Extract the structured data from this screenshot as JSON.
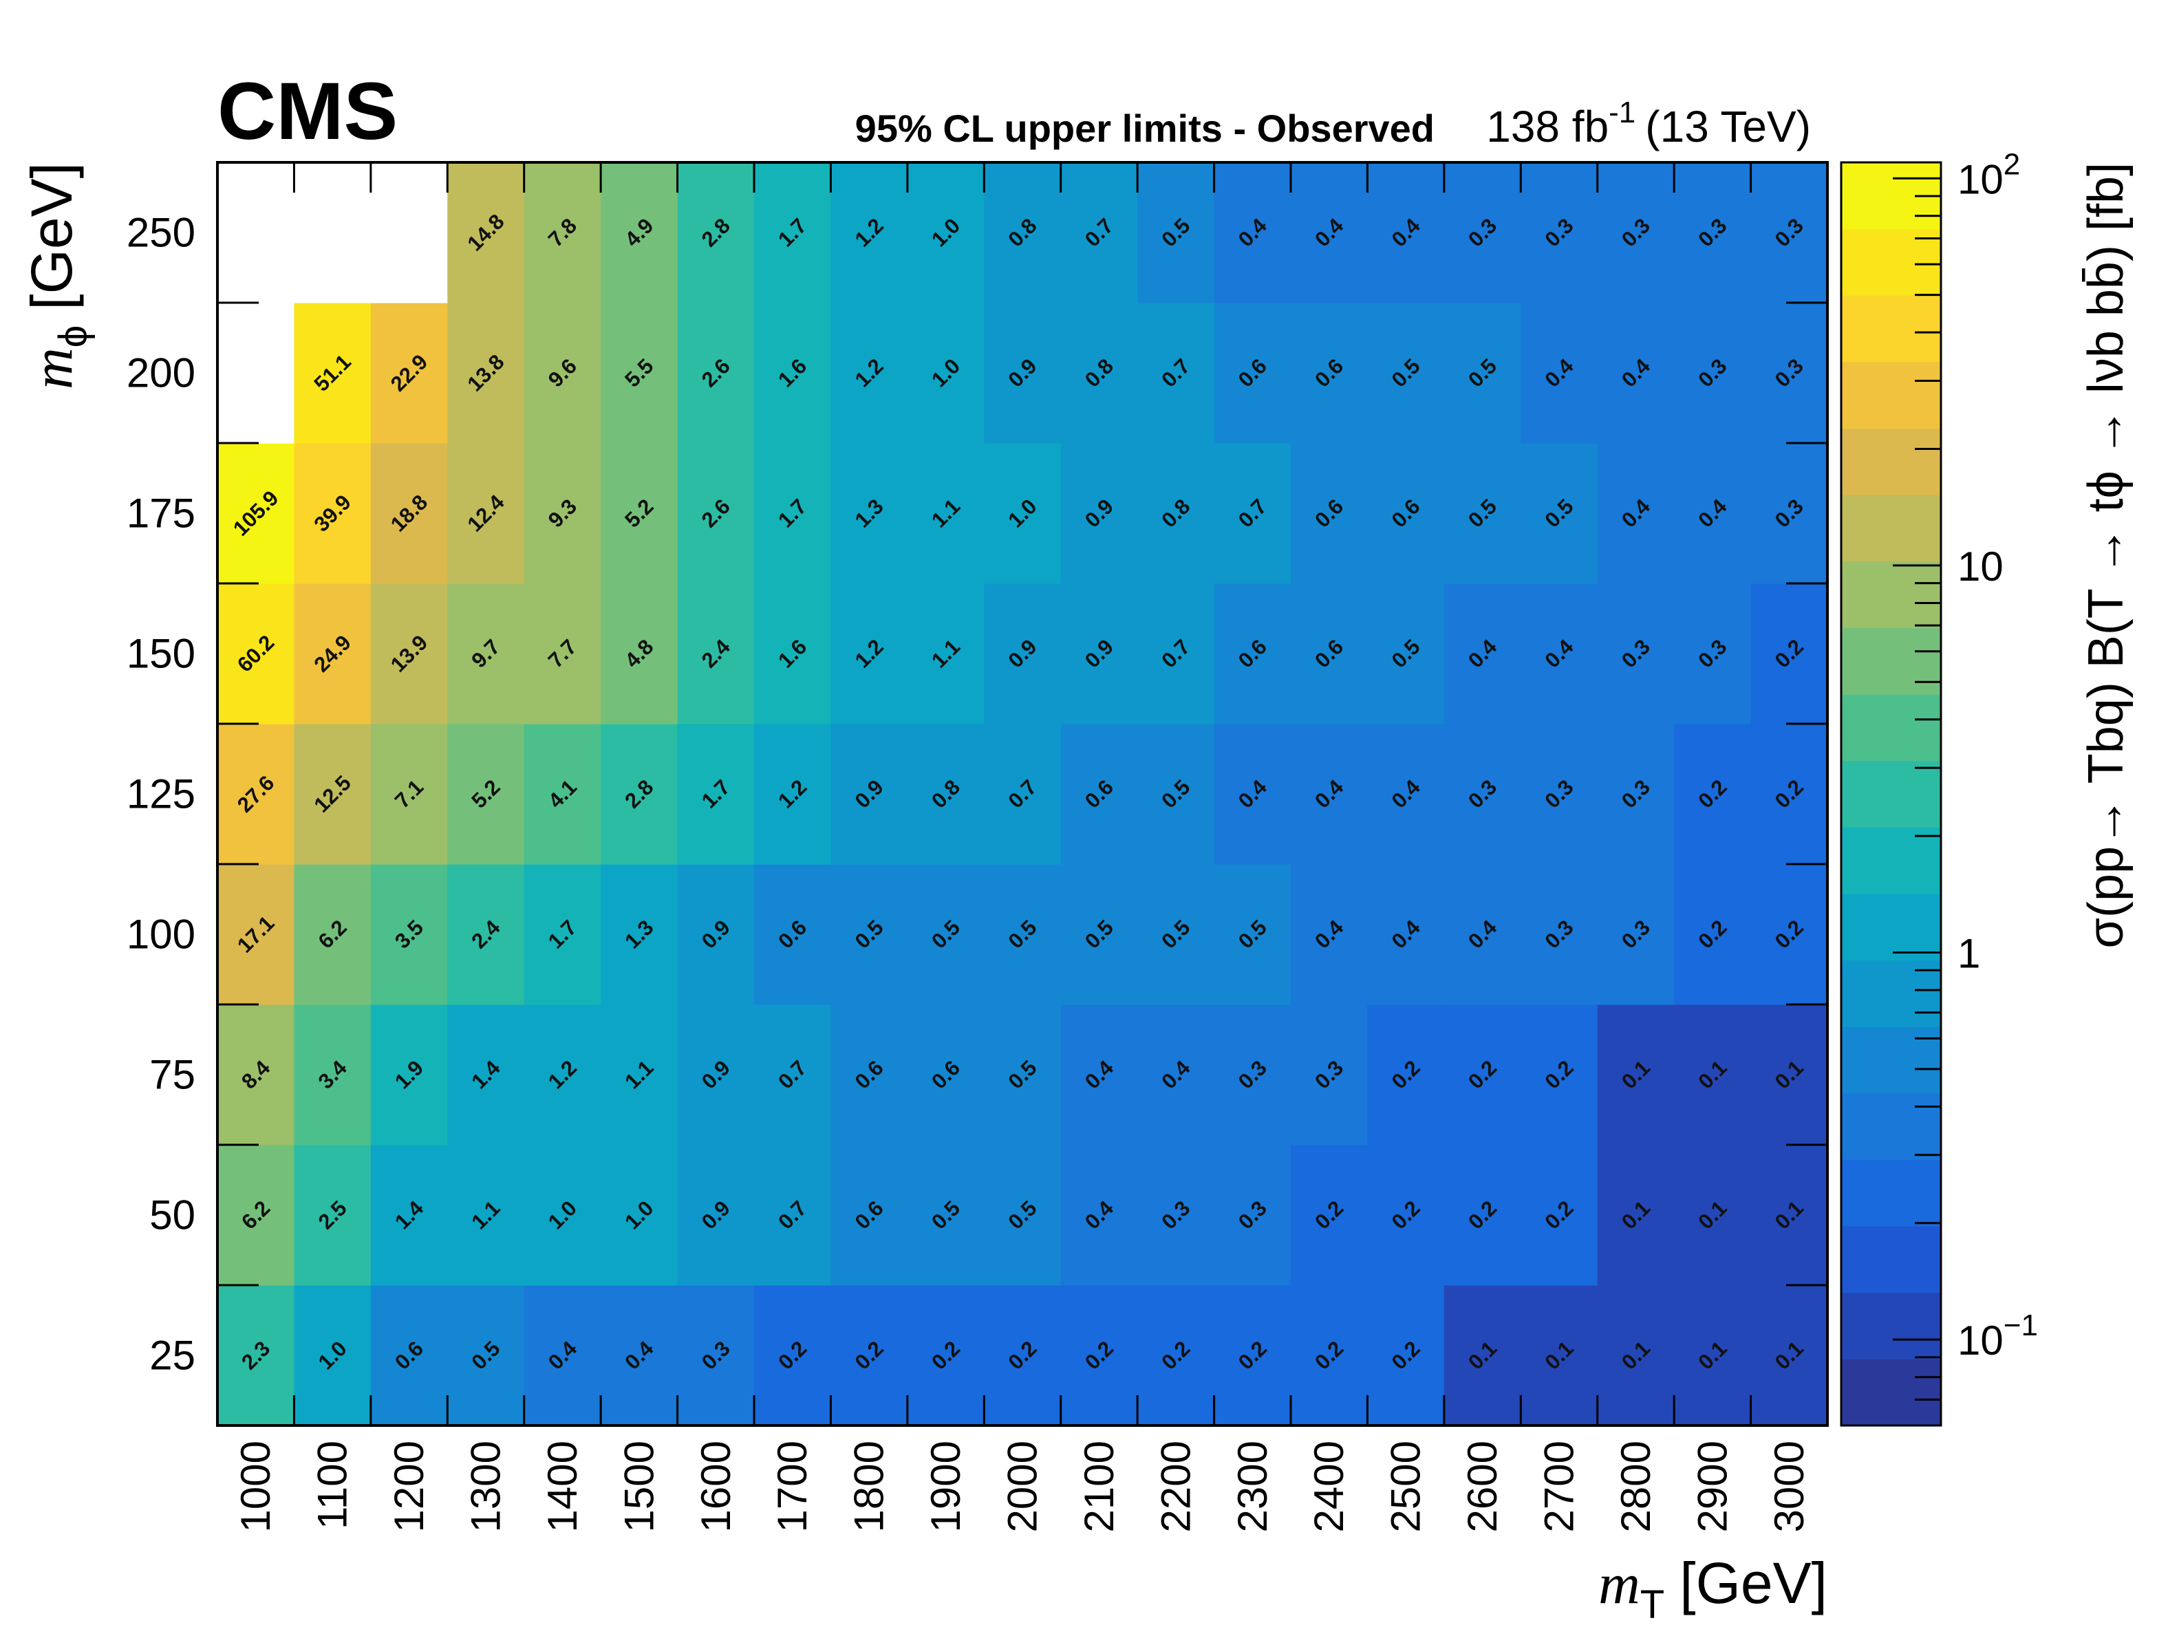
{
  "chart_data": {
    "type": "heatmap",
    "header": {
      "experiment": "CMS",
      "title": "95% CL upper limits - Observed",
      "lumi": "138 fb",
      "lumi_exponent": "-1",
      "energy": "(13 TeV)"
    },
    "xlabel": {
      "symbol": "m",
      "subscript": "T",
      "unit": "[GeV]"
    },
    "ylabel": {
      "symbol": "m",
      "subscript": "ϕ",
      "unit": "[GeV]"
    },
    "zlabel": "σ(pp→ Tbq)  B(T → tϕ → lνb  bb̄) [fb]",
    "x": [
      1000,
      1100,
      1200,
      1300,
      1400,
      1500,
      1600,
      1700,
      1800,
      1900,
      2000,
      2100,
      2200,
      2300,
      2400,
      2500,
      2600,
      2700,
      2800,
      2900,
      3000
    ],
    "y": [
      25,
      50,
      75,
      100,
      125,
      150,
      175,
      200,
      250
    ],
    "x_tick_labels": [
      "1000",
      "1100",
      "1200",
      "1300",
      "1400",
      "1500",
      "1600",
      "1700",
      "1800",
      "1900",
      "2000",
      "2100",
      "2200",
      "2300",
      "2400",
      "2500",
      "2600",
      "2700",
      "2800",
      "2900",
      "3000"
    ],
    "y_tick_labels": [
      "25",
      "50",
      "75",
      "100",
      "125",
      "150",
      "175",
      "200",
      "250"
    ],
    "z_log": true,
    "zlim": [
      0.06,
      110
    ],
    "z_ticks": [
      {
        "value": 0.1,
        "base": "10",
        "exp": "−1"
      },
      {
        "value": 1,
        "base": "1",
        "exp": ""
      },
      {
        "value": 10,
        "base": "10",
        "exp": ""
      },
      {
        "value": 100,
        "base": "10",
        "exp": "2"
      }
    ],
    "values": [
      [
        2.3,
        1.0,
        0.6,
        0.5,
        0.4,
        0.4,
        0.3,
        0.2,
        0.2,
        0.2,
        0.2,
        0.2,
        0.2,
        0.2,
        0.2,
        0.2,
        0.1,
        0.1,
        0.1,
        0.1,
        0.1
      ],
      [
        6.2,
        2.5,
        1.4,
        1.1,
        1.0,
        1.0,
        0.9,
        0.7,
        0.6,
        0.5,
        0.5,
        0.4,
        0.3,
        0.3,
        0.2,
        0.2,
        0.2,
        0.2,
        0.1,
        0.1,
        0.1
      ],
      [
        8.4,
        3.4,
        1.9,
        1.4,
        1.2,
        1.1,
        0.9,
        0.7,
        0.6,
        0.6,
        0.5,
        0.4,
        0.4,
        0.3,
        0.3,
        0.2,
        0.2,
        0.2,
        0.1,
        0.1,
        0.1
      ],
      [
        17.1,
        6.2,
        3.5,
        2.4,
        1.7,
        1.3,
        0.9,
        0.6,
        0.5,
        0.5,
        0.5,
        0.5,
        0.5,
        0.5,
        0.4,
        0.4,
        0.4,
        0.3,
        0.3,
        0.2,
        0.2
      ],
      [
        27.6,
        12.5,
        7.1,
        5.2,
        4.1,
        2.8,
        1.7,
        1.2,
        0.9,
        0.8,
        0.7,
        0.6,
        0.5,
        0.4,
        0.4,
        0.4,
        0.3,
        0.3,
        0.3,
        0.2,
        0.2
      ],
      [
        60.2,
        24.9,
        13.9,
        9.7,
        7.7,
        4.8,
        2.4,
        1.6,
        1.2,
        1.1,
        0.9,
        0.9,
        0.7,
        0.6,
        0.6,
        0.5,
        0.4,
        0.4,
        0.3,
        0.3,
        0.2
      ],
      [
        105.9,
        39.9,
        18.8,
        12.4,
        9.3,
        5.2,
        2.6,
        1.7,
        1.3,
        1.1,
        1.0,
        0.9,
        0.8,
        0.7,
        0.6,
        0.6,
        0.5,
        0.5,
        0.4,
        0.4,
        0.3
      ],
      [
        null,
        51.1,
        22.9,
        13.8,
        9.6,
        5.5,
        2.6,
        1.6,
        1.2,
        1.0,
        0.9,
        0.8,
        0.7,
        0.6,
        0.6,
        0.5,
        0.5,
        0.4,
        0.4,
        0.3,
        0.3
      ],
      [
        null,
        null,
        null,
        14.8,
        7.8,
        4.9,
        2.8,
        1.7,
        1.2,
        1.0,
        0.8,
        0.7,
        0.5,
        0.4,
        0.4,
        0.4,
        0.3,
        0.3,
        0.3,
        0.3,
        0.3
      ]
    ],
    "value_labels": [
      [
        "2.3",
        "1.0",
        "0.6",
        "0.5",
        "0.4",
        "0.4",
        "0.3",
        "0.2",
        "0.2",
        "0.2",
        "0.2",
        "0.2",
        "0.2",
        "0.2",
        "0.2",
        "0.2",
        "0.1",
        "0.1",
        "0.1",
        "0.1",
        "0.1"
      ],
      [
        "6.2",
        "2.5",
        "1.4",
        "1.1",
        "1.0",
        "1.0",
        "0.9",
        "0.7",
        "0.6",
        "0.5",
        "0.5",
        "0.4",
        "0.3",
        "0.3",
        "0.2",
        "0.2",
        "0.2",
        "0.2",
        "0.1",
        "0.1",
        "0.1"
      ],
      [
        "8.4",
        "3.4",
        "1.9",
        "1.4",
        "1.2",
        "1.1",
        "0.9",
        "0.7",
        "0.6",
        "0.6",
        "0.5",
        "0.4",
        "0.4",
        "0.3",
        "0.3",
        "0.2",
        "0.2",
        "0.2",
        "0.1",
        "0.1",
        "0.1"
      ],
      [
        "17.1",
        "6.2",
        "3.5",
        "2.4",
        "1.7",
        "1.3",
        "0.9",
        "0.6",
        "0.5",
        "0.5",
        "0.5",
        "0.5",
        "0.5",
        "0.5",
        "0.4",
        "0.4",
        "0.4",
        "0.3",
        "0.3",
        "0.2",
        "0.2"
      ],
      [
        "27.6",
        "12.5",
        "7.1",
        "5.2",
        "4.1",
        "2.8",
        "1.7",
        "1.2",
        "0.9",
        "0.8",
        "0.7",
        "0.6",
        "0.5",
        "0.4",
        "0.4",
        "0.4",
        "0.3",
        "0.3",
        "0.3",
        "0.2",
        "0.2"
      ],
      [
        "60.2",
        "24.9",
        "13.9",
        "9.7",
        "7.7",
        "4.8",
        "2.4",
        "1.6",
        "1.2",
        "1.1",
        "0.9",
        "0.9",
        "0.7",
        "0.6",
        "0.6",
        "0.5",
        "0.4",
        "0.4",
        "0.3",
        "0.3",
        "0.2"
      ],
      [
        "105.9",
        "39.9",
        "18.8",
        "12.4",
        "9.3",
        "5.2",
        "2.6",
        "1.7",
        "1.3",
        "1.1",
        "1.0",
        "0.9",
        "0.8",
        "0.7",
        "0.6",
        "0.6",
        "0.5",
        "0.5",
        "0.4",
        "0.4",
        "0.3"
      ],
      [
        null,
        "51.1",
        "22.9",
        "13.8",
        "9.6",
        "5.5",
        "2.6",
        "1.6",
        "1.2",
        "1.0",
        "0.9",
        "0.8",
        "0.7",
        "0.6",
        "0.6",
        "0.5",
        "0.5",
        "0.4",
        "0.4",
        "0.3",
        "0.3"
      ],
      [
        null,
        null,
        null,
        "14.8",
        "7.8",
        "4.9",
        "2.8",
        "1.7",
        "1.2",
        "1.0",
        "0.8",
        "0.7",
        "0.5",
        "0.4",
        "0.4",
        "0.4",
        "0.3",
        "0.3",
        "0.3",
        "0.3",
        "0.3"
      ]
    ],
    "colormap": [
      "#2b3a9a",
      "#2447b8",
      "#1e58d2",
      "#196adc",
      "#1a78d8",
      "#1587d2",
      "#0f97cc",
      "#0ca5c6",
      "#14b3b8",
      "#2cbca4",
      "#4dbf8c",
      "#74c07a",
      "#9cbf6a",
      "#c0bc5c",
      "#dbb94f",
      "#f0c23e",
      "#fbd42c",
      "#f9e51a",
      "#f5f514"
    ],
    "grid": false,
    "legend": "colorbar-right"
  }
}
